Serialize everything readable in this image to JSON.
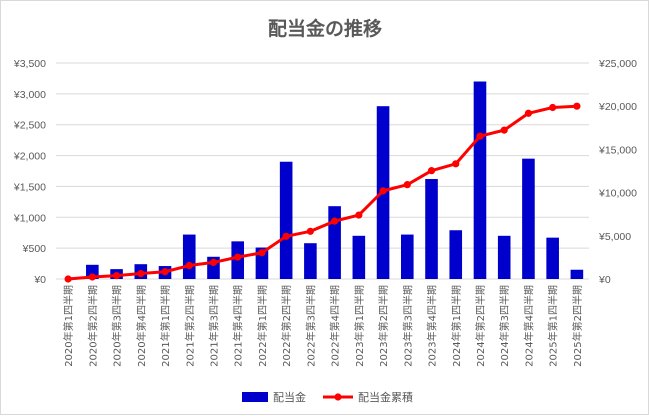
{
  "chart_data": {
    "type": "bar",
    "title": "配当金の推移",
    "categories": [
      "2020年第1四半期",
      "2020年第2四半期",
      "2020年第3四半期",
      "2020年第4四半期",
      "2021年第1四半期",
      "2021年第2四半期",
      "2021年第3四半期",
      "2021年第4四半期",
      "2022年第1四半期",
      "2022年第2四半期",
      "2022年第3四半期",
      "2022年第4四半期",
      "2023年第1四半期",
      "2023年第2四半期",
      "2023年第3四半期",
      "2023年第4四半期",
      "2024年第1四半期",
      "2024年第2四半期",
      "2024年第3四半期",
      "2024年第4四半期",
      "2025年第1四半期",
      "2025年第2四半期"
    ],
    "series": [
      {
        "name": "配当金",
        "type": "bar",
        "axis": "left",
        "color": "#0000cc",
        "values": [
          0,
          230,
          160,
          240,
          210,
          720,
          360,
          610,
          510,
          1900,
          580,
          1180,
          700,
          2800,
          720,
          1620,
          790,
          3200,
          700,
          1950,
          670,
          150
        ]
      },
      {
        "name": "配当金累積",
        "type": "line",
        "axis": "right",
        "color": "#ff0000",
        "values": [
          0,
          230,
          390,
          630,
          840,
          1560,
          1920,
          2530,
          3040,
          4940,
          5520,
          6700,
          7400,
          10200,
          10920,
          12540,
          13330,
          16530,
          17230,
          19180,
          19850,
          20000
        ]
      }
    ],
    "y_left": {
      "min": 0,
      "max": 3500,
      "step": 500,
      "ticks": [
        "¥0",
        "¥500",
        "¥1,000",
        "¥1,500",
        "¥2,000",
        "¥2,500",
        "¥3,000",
        "¥3,500"
      ]
    },
    "y_right": {
      "min": 0,
      "max": 25000,
      "step": 5000,
      "ticks": [
        "¥0",
        "¥5,000",
        "¥10,000",
        "¥15,000",
        "¥20,000",
        "¥25,000"
      ]
    },
    "grid": true,
    "legend_position": "bottom",
    "xlabel": "",
    "ylabel": ""
  }
}
